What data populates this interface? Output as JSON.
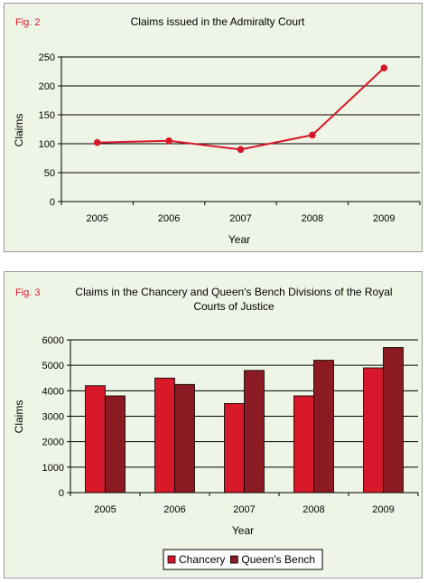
{
  "chart_data": [
    {
      "type": "line",
      "fig_label": "Fig. 2",
      "title": "Claims issued in the Admiralty Court",
      "xlabel": "Year",
      "ylabel": "Claims",
      "categories": [
        "2005",
        "2006",
        "2007",
        "2008",
        "2009"
      ],
      "series": [
        {
          "values": [
            102,
            105,
            90,
            115,
            231
          ],
          "color": "#d7182a"
        }
      ],
      "ylim": [
        0,
        250
      ],
      "yticks": [
        0,
        50,
        100,
        150,
        200,
        250
      ],
      "grid": true
    },
    {
      "type": "bar",
      "fig_label": "Fig. 3",
      "title_lines": [
        "Claims in the Chancery and Queen's Bench Divisions of the Royal",
        "Courts of Justice"
      ],
      "xlabel": "Year",
      "ylabel": "Claims",
      "categories": [
        "2005",
        "2006",
        "2007",
        "2008",
        "2009"
      ],
      "series": [
        {
          "name": "Chancery",
          "values": [
            4200,
            4500,
            3500,
            3800,
            4900
          ],
          "color": "#d7182a"
        },
        {
          "name": "Queen's Bench",
          "values": [
            3800,
            4250,
            4800,
            5200,
            5700
          ],
          "color": "#8b1a22"
        }
      ],
      "ylim": [
        0,
        6000
      ],
      "yticks": [
        0,
        1000,
        2000,
        3000,
        4000,
        5000,
        6000
      ],
      "grid": true,
      "legend": "bottom"
    }
  ]
}
